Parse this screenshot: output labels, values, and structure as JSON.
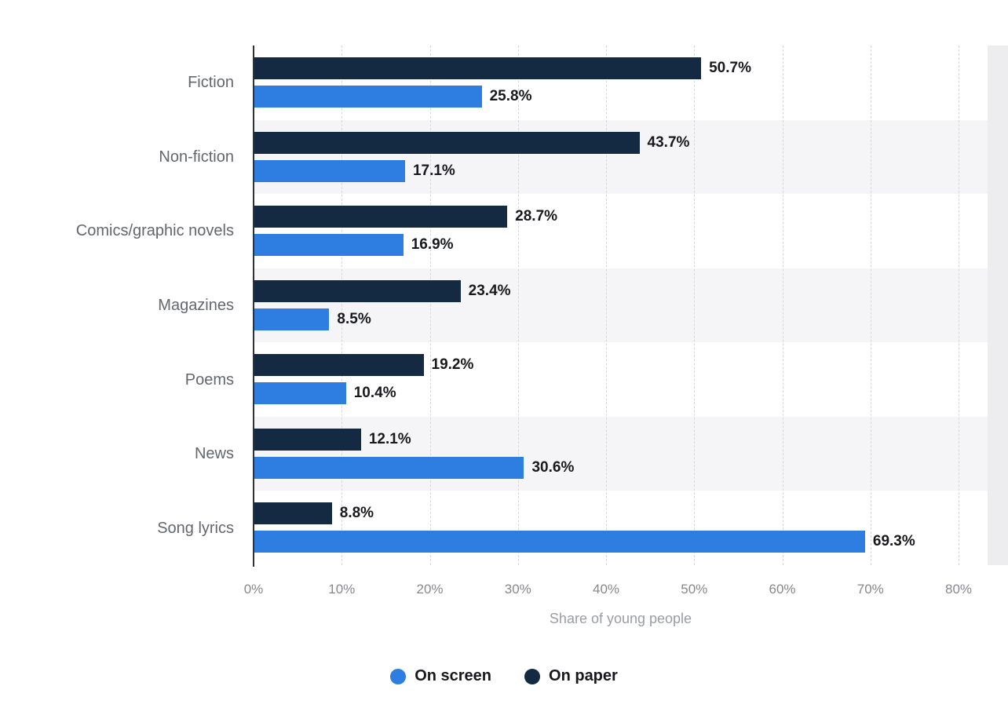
{
  "chart_data": {
    "type": "bar",
    "orientation": "horizontal",
    "title": "",
    "xlabel": "Share of young people",
    "xlim": [
      0,
      80
    ],
    "xticks": [
      0,
      10,
      20,
      30,
      40,
      50,
      60,
      70,
      80
    ],
    "xtick_labels": [
      "0%",
      "10%",
      "20%",
      "30%",
      "40%",
      "50%",
      "60%",
      "70%",
      "80%"
    ],
    "grid": "dashed-vertical",
    "row_stripes": true,
    "categories": [
      "Fiction",
      "Non-fiction",
      "Comics/graphic novels",
      "Magazines",
      "Poems",
      "News",
      "Song lyrics"
    ],
    "series": [
      {
        "name": "On paper",
        "color": "#142a43",
        "position_in_group": "top",
        "values": [
          50.7,
          43.7,
          28.7,
          23.4,
          19.2,
          12.1,
          8.8
        ],
        "value_labels": [
          "50.7%",
          "43.7%",
          "28.7%",
          "23.4%",
          "19.2%",
          "12.1%",
          "8.8%"
        ]
      },
      {
        "name": "On screen",
        "color": "#2e7de0",
        "position_in_group": "bottom",
        "values": [
          25.8,
          17.1,
          16.9,
          8.5,
          10.4,
          30.6,
          69.3
        ],
        "value_labels": [
          "25.8%",
          "17.1%",
          "16.9%",
          "8.5%",
          "10.4%",
          "30.6%",
          "69.3%"
        ]
      }
    ],
    "legend_position": "bottom",
    "legend": [
      {
        "label": "On screen",
        "color": "#2e7de0"
      },
      {
        "label": "On paper",
        "color": "#142a43"
      }
    ],
    "colors": {
      "stripe": "#f5f5f7",
      "gridline": "#d6d6db",
      "axis_line": "#2e3136",
      "value_text": "#17191d",
      "category_text": "#63676d",
      "tick_text": "#85888d",
      "xlabel_text": "#9a9da2"
    }
  }
}
